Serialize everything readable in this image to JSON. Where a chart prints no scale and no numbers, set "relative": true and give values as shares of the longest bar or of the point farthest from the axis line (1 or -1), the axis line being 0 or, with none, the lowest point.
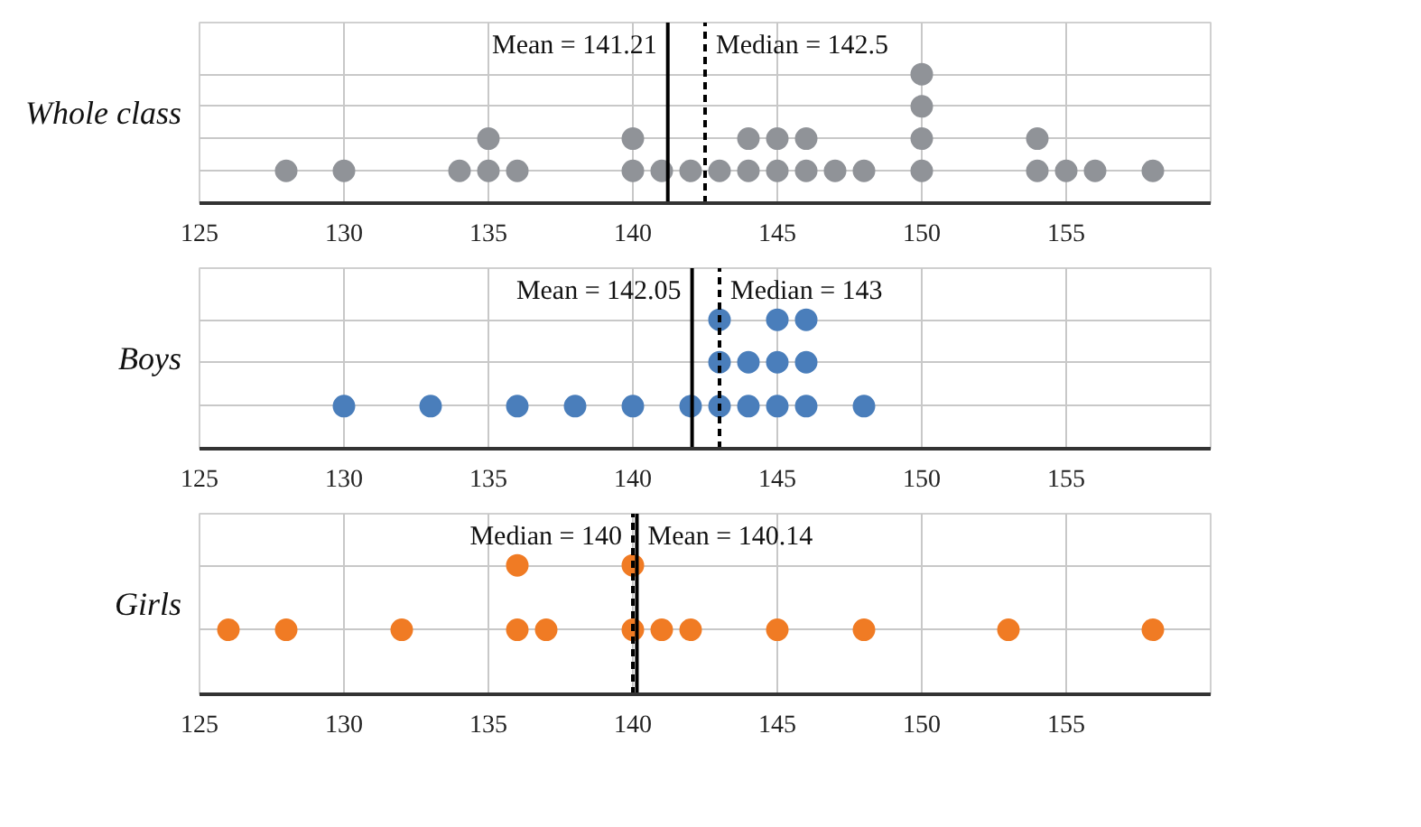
{
  "chart_data": [
    {
      "type": "scatter",
      "title": "Whole class",
      "marker": "circle",
      "grid": true,
      "tick_labels": "x",
      "relative": true,
      "xlim": [
        125,
        160
      ],
      "xticks": [
        125,
        130,
        135,
        140,
        145,
        150,
        155
      ],
      "series": [
        {
          "color": "#909398",
          "x": [
            128,
            130,
            134,
            135,
            136,
            140,
            141,
            142,
            143,
            144,
            145,
            146,
            147,
            148,
            150,
            154,
            155,
            156,
            158,
            135,
            140,
            144,
            145,
            146,
            150,
            154,
            150,
            150
          ],
          "values": [
            0.25,
            0.25,
            0.25,
            0.25,
            0.25,
            0.25,
            0.25,
            0.25,
            0.25,
            0.25,
            0.25,
            0.25,
            0.25,
            0.25,
            0.25,
            0.25,
            0.25,
            0.25,
            0.25,
            0.5,
            0.5,
            0.5,
            0.5,
            0.5,
            0.5,
            0.5,
            0.75,
            1
          ]
        }
      ],
      "ref_lines": [
        {
          "axis": "x",
          "value": 141.21,
          "label": "Mean = 141.21",
          "line_style": "solid",
          "color": "#000000"
        },
        {
          "axis": "x",
          "value": 142.5,
          "label": "Median = 142.5",
          "line_style": "dashed",
          "color": "#000000"
        }
      ]
    },
    {
      "type": "scatter",
      "title": "Boys",
      "marker": "circle",
      "grid": true,
      "tick_labels": "x",
      "relative": true,
      "xlim": [
        125,
        160
      ],
      "xticks": [
        125,
        130,
        135,
        140,
        145,
        150,
        155
      ],
      "series": [
        {
          "color": "#4a7ebb",
          "x": [
            130,
            133,
            136,
            138,
            140,
            142,
            143,
            144,
            145,
            146,
            148,
            143,
            144,
            145,
            146,
            143,
            145,
            146
          ],
          "values": [
            0.33,
            0.33,
            0.33,
            0.33,
            0.33,
            0.33,
            0.33,
            0.33,
            0.33,
            0.33,
            0.33,
            0.67,
            0.67,
            0.67,
            0.67,
            1,
            1,
            1
          ]
        }
      ],
      "ref_lines": [
        {
          "axis": "x",
          "value": 142.05,
          "label": "Mean = 142.05",
          "line_style": "solid",
          "color": "#000000"
        },
        {
          "axis": "x",
          "value": 143,
          "label": "Median = 143",
          "line_style": "dashed",
          "color": "#000000"
        }
      ]
    },
    {
      "type": "scatter",
      "title": "Girls",
      "marker": "circle",
      "grid": true,
      "tick_labels": "x",
      "relative": true,
      "xlim": [
        125,
        160
      ],
      "xticks": [
        125,
        130,
        135,
        140,
        145,
        150,
        155
      ],
      "series": [
        {
          "color": "#f07b24",
          "x": [
            126,
            128,
            132,
            136,
            137,
            140,
            141,
            142,
            145,
            148,
            153,
            158,
            136,
            140
          ],
          "values": [
            0.5,
            0.5,
            0.5,
            0.5,
            0.5,
            0.5,
            0.5,
            0.5,
            0.5,
            0.5,
            0.5,
            0.5,
            1,
            1
          ]
        }
      ],
      "ref_lines": [
        {
          "axis": "x",
          "value": 140.14,
          "label": "Mean = 140.14",
          "line_style": "solid",
          "color": "#000000"
        },
        {
          "axis": "x",
          "value": 140,
          "label": "Median = 140",
          "line_style": "dashed",
          "color": "#000000"
        }
      ]
    }
  ]
}
